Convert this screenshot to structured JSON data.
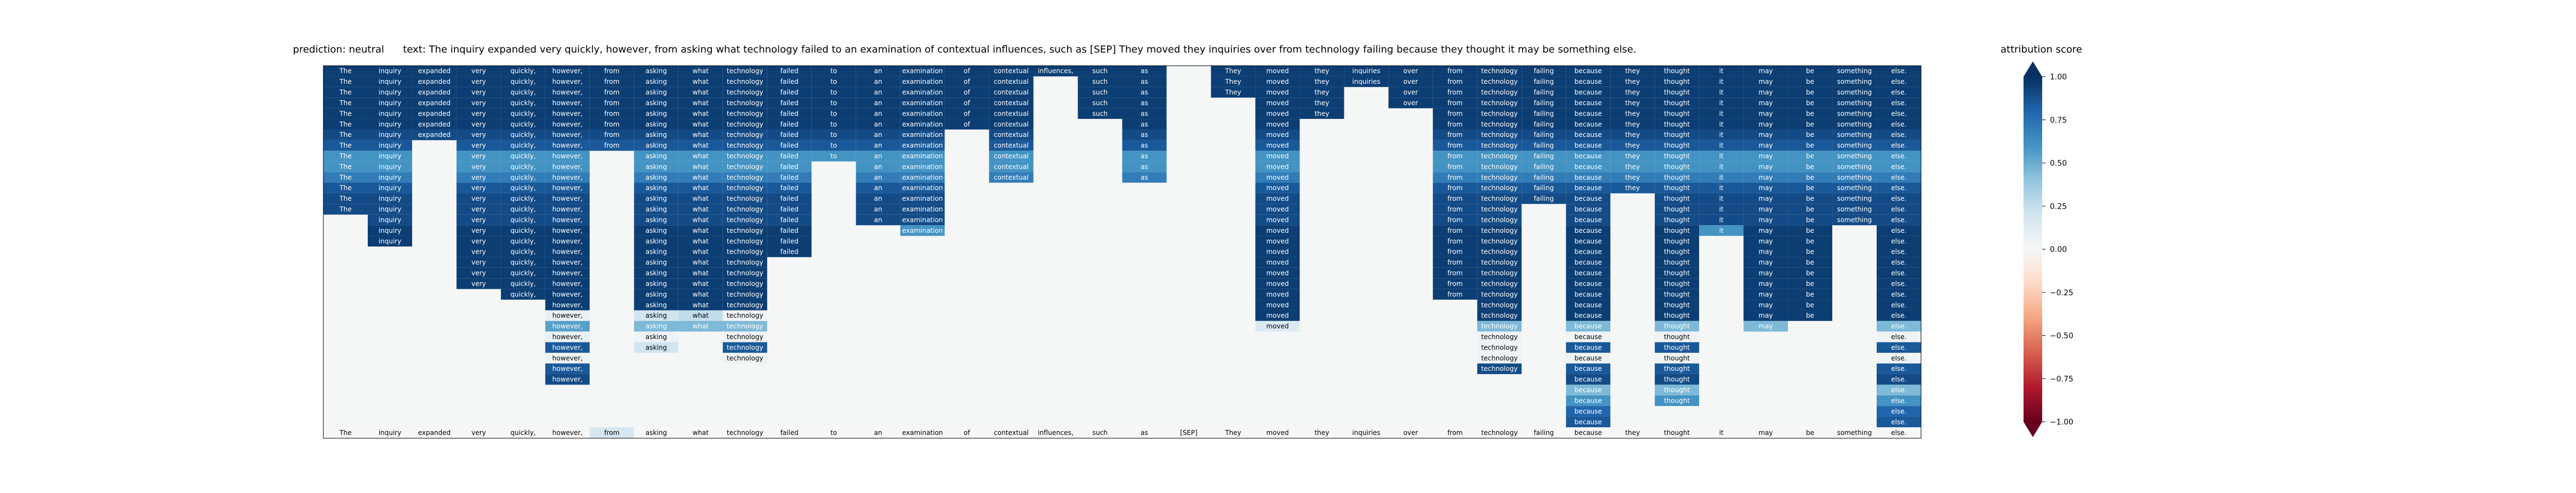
{
  "header": {
    "prediction_label": "prediction:",
    "prediction_value": "neutral",
    "text_label": "text:",
    "text_value": "The inquiry expanded very quickly, however, from asking what technology failed to an examination of contextual influences, such as [SEP] They moved they inquiries over from technology failing because they thought it may be something else."
  },
  "colorbar": {
    "title": "attribution score",
    "ticks": [
      "1.00",
      "0.75",
      "0.50",
      "0.25",
      "0.00",
      "−0.25",
      "−0.50",
      "−0.75",
      "−1.00"
    ],
    "colormap": [
      "#67001f",
      "#b2182b",
      "#d6604d",
      "#f4a582",
      "#fddbc7",
      "#f7f7f7",
      "#d1e5f0",
      "#92c5de",
      "#4393c3",
      "#2166ac",
      "#053061"
    ]
  },
  "chart_data": {
    "type": "heatmap",
    "title": "",
    "range": [
      -1,
      1
    ],
    "background": "#f5f7f7",
    "tokens": [
      "The",
      "inquiry",
      "expanded",
      "very",
      "quickly,",
      "however,",
      "from",
      "asking",
      "what",
      "technology",
      "failed",
      "to",
      "an",
      "examination",
      "of",
      "contextual",
      "influences,",
      "such",
      "as",
      "[SEP]",
      "They",
      "moved",
      "they",
      "inquiries",
      "over",
      "from",
      "technology",
      "failing",
      "because",
      "they",
      "thought",
      "it",
      "may",
      "be",
      "something",
      "else."
    ],
    "columns": [
      {
        "rows": 14,
        "values": [
          0.95,
          0.95,
          0.95,
          0.95,
          0.95,
          0.95,
          0.9,
          0.85,
          0.6,
          0.6,
          0.7,
          0.85,
          0.9,
          0.9
        ]
      },
      {
        "rows": 17,
        "values": [
          0.95,
          0.95,
          0.95,
          0.95,
          0.95,
          0.95,
          0.9,
          0.85,
          0.6,
          0.6,
          0.7,
          0.85,
          0.9,
          0.9,
          0.9,
          0.95,
          0.95
        ]
      },
      {
        "rows": 7,
        "values": [
          0.95,
          0.95,
          0.95,
          0.95,
          0.95,
          0.95,
          0.9
        ]
      },
      {
        "rows": 21,
        "values": [
          0.95,
          0.95,
          0.95,
          0.95,
          0.95,
          0.95,
          0.9,
          0.85,
          0.6,
          0.6,
          0.7,
          0.85,
          0.9,
          0.9,
          0.9,
          0.95,
          0.95,
          0.95,
          0.95,
          0.95,
          0.95
        ]
      },
      {
        "rows": 22,
        "values": [
          0.95,
          0.95,
          0.95,
          0.95,
          0.95,
          0.95,
          0.9,
          0.85,
          0.6,
          0.6,
          0.7,
          0.85,
          0.9,
          0.9,
          0.9,
          0.95,
          0.95,
          0.95,
          0.95,
          0.95,
          0.95,
          0.95
        ]
      },
      {
        "rows": 30,
        "values": [
          0.95,
          0.95,
          0.95,
          0.95,
          0.95,
          0.95,
          0.9,
          0.85,
          0.6,
          0.6,
          0.7,
          0.85,
          0.9,
          0.9,
          0.9,
          0.95,
          0.95,
          0.95,
          0.95,
          0.95,
          0.95,
          0.95,
          0.95,
          0.08,
          0.55,
          0.08,
          0.85,
          0.05,
          0.85,
          0.9
        ]
      },
      {
        "rows": 8,
        "values": [
          0.95,
          0.95,
          0.95,
          0.95,
          0.95,
          0.95,
          0.9,
          0.85
        ]
      },
      {
        "rows": 27,
        "values": [
          0.95,
          0.95,
          0.95,
          0.95,
          0.95,
          0.95,
          0.9,
          0.85,
          0.6,
          0.6,
          0.7,
          0.85,
          0.9,
          0.9,
          0.9,
          0.95,
          0.95,
          0.95,
          0.95,
          0.95,
          0.95,
          0.95,
          0.95,
          0.2,
          0.45,
          0.05,
          0.2
        ]
      },
      {
        "rows": 25,
        "values": [
          0.95,
          0.95,
          0.95,
          0.95,
          0.95,
          0.95,
          0.9,
          0.85,
          0.6,
          0.6,
          0.7,
          0.85,
          0.9,
          0.9,
          0.9,
          0.95,
          0.95,
          0.95,
          0.95,
          0.95,
          0.95,
          0.95,
          0.95,
          0.25,
          0.45
        ]
      },
      {
        "rows": 28,
        "values": [
          0.95,
          0.95,
          0.95,
          0.95,
          0.95,
          0.95,
          0.9,
          0.85,
          0.6,
          0.6,
          0.7,
          0.85,
          0.9,
          0.9,
          0.9,
          0.95,
          0.95,
          0.95,
          0.95,
          0.95,
          0.95,
          0.95,
          0.95,
          0.03,
          0.45,
          0.05,
          0.85,
          0.05
        ]
      },
      {
        "rows": 18,
        "values": [
          0.95,
          0.95,
          0.95,
          0.95,
          0.95,
          0.95,
          0.9,
          0.85,
          0.6,
          0.6,
          0.7,
          0.85,
          0.9,
          0.9,
          0.9,
          0.95,
          0.95,
          0.95
        ]
      },
      {
        "rows": 9,
        "values": [
          0.95,
          0.95,
          0.95,
          0.95,
          0.95,
          0.95,
          0.9,
          0.85,
          0.6
        ]
      },
      {
        "rows": 15,
        "values": [
          0.95,
          0.95,
          0.95,
          0.95,
          0.95,
          0.95,
          0.9,
          0.85,
          0.6,
          0.6,
          0.7,
          0.85,
          0.9,
          0.9,
          0.9
        ]
      },
      {
        "rows": 16,
        "values": [
          0.95,
          0.95,
          0.95,
          0.95,
          0.95,
          0.95,
          0.9,
          0.85,
          0.6,
          0.6,
          0.7,
          0.85,
          0.9,
          0.9,
          0.9,
          0.6
        ]
      },
      {
        "rows": 6,
        "values": [
          0.95,
          0.95,
          0.95,
          0.95,
          0.95,
          0.95
        ]
      },
      {
        "rows": 11,
        "values": [
          0.95,
          0.95,
          0.95,
          0.95,
          0.95,
          0.95,
          0.9,
          0.85,
          0.6,
          0.6,
          0.7
        ]
      },
      {
        "rows": 1,
        "values": [
          0.95
        ]
      },
      {
        "rows": 5,
        "values": [
          0.95,
          0.95,
          0.95,
          0.95,
          0.95
        ]
      },
      {
        "rows": 11,
        "values": [
          0.95,
          0.95,
          0.95,
          0.95,
          0.95,
          0.95,
          0.9,
          0.85,
          0.6,
          0.6,
          0.7
        ]
      },
      {
        "rows": 0,
        "values": []
      },
      {
        "rows": 3,
        "values": [
          0.95,
          0.95,
          0.95
        ]
      },
      {
        "rows": 25,
        "values": [
          0.95,
          0.95,
          0.95,
          0.95,
          0.95,
          0.95,
          0.9,
          0.85,
          0.6,
          0.6,
          0.7,
          0.85,
          0.9,
          0.9,
          0.9,
          0.95,
          0.95,
          0.95,
          0.95,
          0.95,
          0.95,
          0.95,
          0.95,
          0.95,
          0.15
        ]
      },
      {
        "rows": 5,
        "values": [
          0.95,
          0.95,
          0.95,
          0.95,
          0.95
        ]
      },
      {
        "rows": 2,
        "values": [
          0.95,
          0.95
        ]
      },
      {
        "rows": 4,
        "values": [
          0.95,
          0.95,
          0.95,
          0.95
        ]
      },
      {
        "rows": 22,
        "values": [
          0.95,
          0.95,
          0.95,
          0.95,
          0.95,
          0.95,
          0.9,
          0.85,
          0.6,
          0.6,
          0.7,
          0.85,
          0.9,
          0.9,
          0.9,
          0.95,
          0.95,
          0.95,
          0.95,
          0.95,
          0.95,
          0.95
        ]
      },
      {
        "rows": 29,
        "values": [
          0.95,
          0.95,
          0.95,
          0.95,
          0.95,
          0.95,
          0.9,
          0.85,
          0.6,
          0.6,
          0.7,
          0.85,
          0.9,
          0.9,
          0.9,
          0.95,
          0.95,
          0.95,
          0.95,
          0.95,
          0.95,
          0.95,
          0.95,
          0.95,
          0.45,
          0.05,
          0.05,
          0.05,
          0.9
        ]
      },
      {
        "rows": 13,
        "values": [
          0.95,
          0.95,
          0.95,
          0.95,
          0.95,
          0.95,
          0.9,
          0.85,
          0.6,
          0.6,
          0.7,
          0.85,
          0.9
        ]
      },
      {
        "rows": 34,
        "values": [
          0.95,
          0.95,
          0.95,
          0.95,
          0.95,
          0.95,
          0.9,
          0.85,
          0.6,
          0.6,
          0.7,
          0.85,
          0.9,
          0.9,
          0.9,
          0.95,
          0.95,
          0.95,
          0.95,
          0.95,
          0.95,
          0.95,
          0.95,
          0.95,
          0.45,
          0.05,
          0.85,
          0.05,
          0.85,
          0.9,
          0.45,
          0.6,
          0.8,
          0.85
        ]
      },
      {
        "rows": 12,
        "values": [
          0.95,
          0.95,
          0.95,
          0.95,
          0.95,
          0.95,
          0.9,
          0.85,
          0.6,
          0.6,
          0.7,
          0.85
        ]
      },
      {
        "rows": 32,
        "values": [
          0.95,
          0.95,
          0.95,
          0.95,
          0.95,
          0.95,
          0.9,
          0.85,
          0.6,
          0.6,
          0.7,
          0.85,
          0.9,
          0.9,
          0.9,
          0.95,
          0.95,
          0.95,
          0.95,
          0.95,
          0.95,
          0.95,
          0.95,
          0.95,
          0.45,
          0.05,
          0.85,
          0.05,
          0.85,
          0.9,
          0.45,
          0.6
        ]
      },
      {
        "rows": 16,
        "values": [
          0.95,
          0.95,
          0.95,
          0.95,
          0.95,
          0.95,
          0.9,
          0.85,
          0.6,
          0.6,
          0.7,
          0.85,
          0.9,
          0.9,
          0.9,
          0.6
        ]
      },
      {
        "rows": 25,
        "values": [
          0.95,
          0.95,
          0.95,
          0.95,
          0.95,
          0.95,
          0.9,
          0.85,
          0.6,
          0.6,
          0.7,
          0.85,
          0.9,
          0.9,
          0.9,
          0.95,
          0.95,
          0.95,
          0.95,
          0.95,
          0.95,
          0.95,
          0.95,
          0.95,
          0.45
        ]
      },
      {
        "rows": 24,
        "values": [
          0.95,
          0.95,
          0.95,
          0.95,
          0.95,
          0.95,
          0.9,
          0.85,
          0.6,
          0.6,
          0.7,
          0.85,
          0.9,
          0.9,
          0.9,
          0.95,
          0.95,
          0.95,
          0.95,
          0.95,
          0.95,
          0.95,
          0.95,
          0.95
        ]
      },
      {
        "rows": 15,
        "values": [
          0.95,
          0.95,
          0.95,
          0.95,
          0.95,
          0.95,
          0.9,
          0.85,
          0.6,
          0.6,
          0.7,
          0.85,
          0.9,
          0.9,
          0.9
        ]
      },
      {
        "rows": 34,
        "values": [
          0.95,
          0.95,
          0.95,
          0.95,
          0.95,
          0.95,
          0.9,
          0.85,
          0.6,
          0.6,
          0.7,
          0.85,
          0.9,
          0.9,
          0.9,
          0.95,
          0.95,
          0.95,
          0.95,
          0.95,
          0.95,
          0.95,
          0.95,
          0.95,
          0.45,
          0.05,
          0.85,
          0.05,
          0.85,
          0.9,
          0.45,
          0.6,
          0.8,
          0.85
        ]
      }
    ]
  }
}
